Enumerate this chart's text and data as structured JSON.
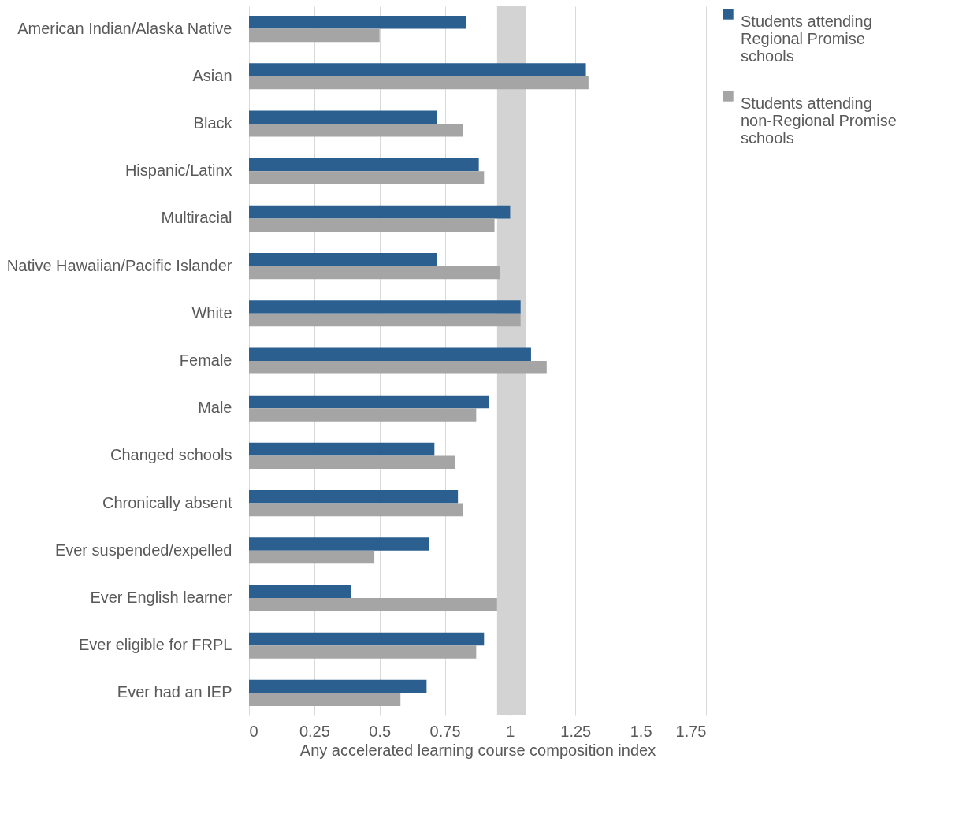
{
  "chart_data": {
    "type": "bar",
    "orientation": "horizontal",
    "xlabel": "Any accelerated learning course composition index",
    "categories": [
      "American Indian/Alaska Native",
      "Asian",
      "Black",
      "Hispanic/Latinx",
      "Multiracial",
      "Native Hawaiian/Pacific Islander",
      "White",
      "Female",
      "Male",
      "Changed schools",
      "Chronically absent",
      "Ever suspended/expelled",
      "Ever English learner",
      "Ever eligible for FRPL",
      "Ever had an IEP"
    ],
    "series": [
      {
        "name": "Students attending Regional Promise schools",
        "color": "#2a5f8f",
        "values": [
          0.83,
          1.29,
          0.72,
          0.88,
          1.0,
          0.72,
          1.04,
          1.08,
          0.92,
          0.71,
          0.8,
          0.69,
          0.39,
          0.9,
          0.68
        ]
      },
      {
        "name": "Students attending non-Regional Promise schools",
        "color": "#a5a5a5",
        "values": [
          0.5,
          1.3,
          0.82,
          0.9,
          0.94,
          0.96,
          1.04,
          1.14,
          0.87,
          0.79,
          0.82,
          0.48,
          0.95,
          0.87,
          0.58
        ]
      }
    ],
    "xlim": [
      0,
      1.75
    ],
    "xticks": [
      0,
      0.25,
      0.5,
      0.75,
      1,
      1.25,
      1.5,
      1.75
    ],
    "bands": [
      {
        "axis": "x",
        "from": 0.95,
        "to": 1.06,
        "color": "#d3d3d3"
      }
    ],
    "grid": "x",
    "legend": "right"
  }
}
